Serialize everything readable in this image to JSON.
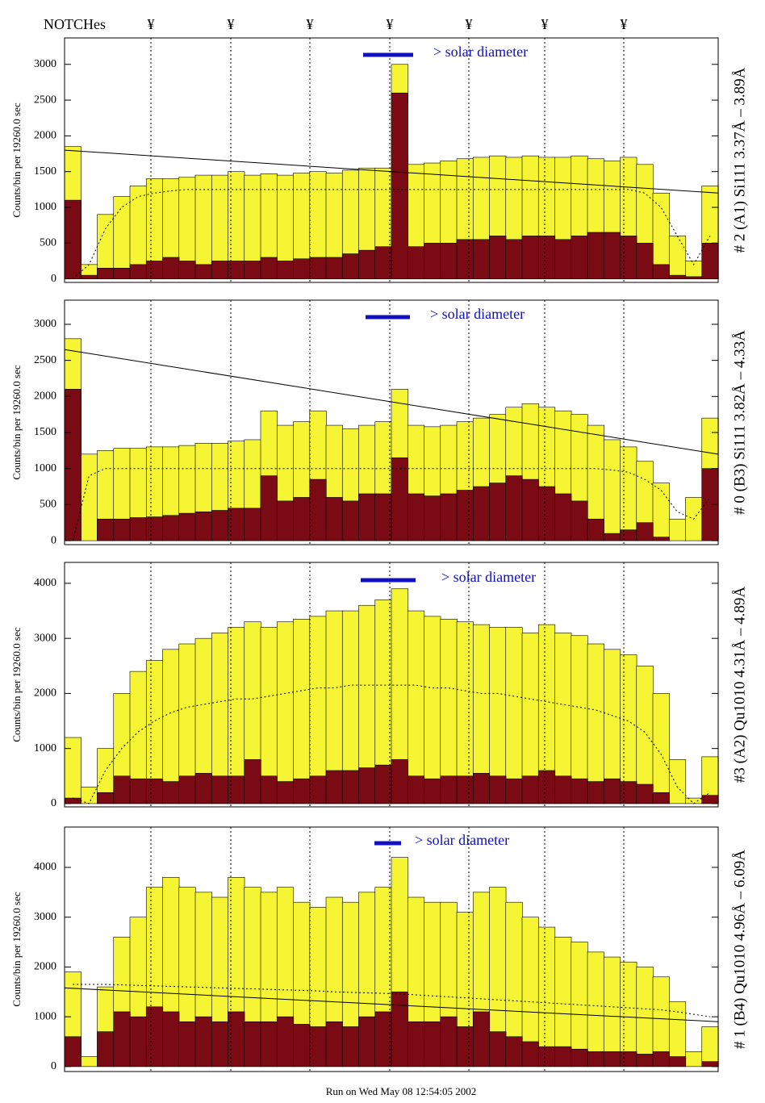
{
  "notches": {
    "label": "NOTCHes",
    "markers": [
      "¥",
      "¥",
      "¥",
      "¥",
      "¥",
      "¥",
      "¥"
    ]
  },
  "footer": "Run on Wed May 08 12:54:05 2002",
  "chart_data": [
    {
      "type": "bar",
      "y_label": "Counts/bin per  19260.0 sec",
      "side_label": "# 2 (A1) Si111  3.37Å – 3.89Å",
      "annotation": "> solar diameter",
      "ylim": [
        -50,
        3370
      ],
      "yticks": [
        0,
        500,
        1000,
        1500,
        2000,
        2500,
        3000
      ],
      "series": [
        {
          "name": "total",
          "color": "#f5f534",
          "values": [
            1850,
            200,
            900,
            1150,
            1300,
            1400,
            1400,
            1420,
            1450,
            1450,
            1500,
            1450,
            1470,
            1450,
            1480,
            1500,
            1480,
            1520,
            1550,
            1550,
            3000,
            1600,
            1620,
            1650,
            1680,
            1700,
            1720,
            1700,
            1720,
            1700,
            1700,
            1720,
            1680,
            1650,
            1700,
            1600,
            1200,
            600,
            250,
            1300
          ]
        },
        {
          "name": "lines",
          "color": "#7a0a14",
          "values": [
            1100,
            50,
            150,
            150,
            200,
            250,
            300,
            250,
            200,
            250,
            250,
            250,
            300,
            250,
            280,
            300,
            300,
            350,
            400,
            450,
            2600,
            450,
            500,
            500,
            550,
            550,
            600,
            550,
            600,
            600,
            550,
            600,
            650,
            650,
            600,
            500,
            200,
            50,
            30,
            500
          ]
        }
      ],
      "smooth": [
        0,
        200,
        700,
        1000,
        1150,
        1200,
        1230,
        1250,
        1250,
        1250,
        1250,
        1250,
        1250,
        1250,
        1250,
        1250,
        1250,
        1250,
        1250,
        1250,
        1250,
        1250,
        1250,
        1250,
        1250,
        1250,
        1250,
        1250,
        1250,
        1250,
        1250,
        1250,
        1250,
        1250,
        1250,
        1200,
        1000,
        600,
        200,
        600
      ],
      "trend": [
        1800,
        1200
      ]
    },
    {
      "type": "bar",
      "y_label": "Counts/bin per  19260.0 sec",
      "side_label": "# 0 (B3) Si111  3.82Å – 4.33Å",
      "annotation": "> solar diameter",
      "ylim": [
        -55,
        3335
      ],
      "yticks": [
        0,
        500,
        1000,
        1500,
        2000,
        2500,
        3000
      ],
      "series": [
        {
          "name": "total",
          "color": "#f5f534",
          "values": [
            2800,
            1200,
            1250,
            1280,
            1280,
            1300,
            1300,
            1320,
            1350,
            1350,
            1380,
            1400,
            1800,
            1600,
            1650,
            1800,
            1600,
            1550,
            1600,
            1650,
            2100,
            1600,
            1580,
            1600,
            1650,
            1700,
            1750,
            1850,
            1900,
            1850,
            1800,
            1750,
            1600,
            1400,
            1300,
            1100,
            800,
            300,
            600,
            1700
          ]
        },
        {
          "name": "lines",
          "color": "#7a0a14",
          "values": [
            2100,
            0,
            300,
            300,
            320,
            330,
            350,
            380,
            400,
            420,
            450,
            450,
            900,
            550,
            600,
            850,
            600,
            550,
            650,
            650,
            1150,
            650,
            620,
            650,
            700,
            750,
            800,
            900,
            850,
            750,
            650,
            550,
            300,
            100,
            150,
            250,
            50,
            0,
            0,
            1000
          ]
        }
      ],
      "smooth": [
        0,
        900,
        1000,
        1000,
        1000,
        1000,
        1000,
        1000,
        1000,
        1000,
        1000,
        1000,
        1000,
        1000,
        1000,
        1000,
        1000,
        1000,
        1000,
        1000,
        1000,
        1000,
        1000,
        1000,
        1000,
        1000,
        1000,
        1000,
        1000,
        1000,
        1000,
        1000,
        1000,
        980,
        950,
        850,
        700,
        400,
        300,
        600
      ],
      "trend": [
        2650,
        1200
      ]
    },
    {
      "type": "bar",
      "y_label": "Counts/bin per  19260.0 sec",
      "side_label": "#3 (A2) Qu1010  4.31Å – 4.89Å",
      "annotation": "> solar diameter",
      "ylim": [
        -60,
        4380
      ],
      "yticks": [
        0,
        1000,
        2000,
        3000,
        4000
      ],
      "series": [
        {
          "name": "total",
          "color": "#f5f534",
          "values": [
            1200,
            300,
            1000,
            2000,
            2400,
            2600,
            2800,
            2900,
            3000,
            3100,
            3200,
            3300,
            3200,
            3300,
            3350,
            3400,
            3500,
            3500,
            3600,
            3700,
            3900,
            3500,
            3400,
            3350,
            3300,
            3250,
            3200,
            3200,
            3100,
            3250,
            3100,
            3050,
            2900,
            2800,
            2700,
            2500,
            2000,
            800,
            100,
            850
          ]
        },
        {
          "name": "lines",
          "color": "#7a0a14",
          "values": [
            100,
            0,
            200,
            500,
            450,
            450,
            400,
            500,
            550,
            500,
            500,
            800,
            500,
            400,
            450,
            500,
            600,
            600,
            650,
            700,
            800,
            500,
            450,
            500,
            500,
            550,
            500,
            450,
            500,
            600,
            500,
            450,
            400,
            450,
            400,
            350,
            200,
            0,
            0,
            150
          ]
        }
      ],
      "smooth": [
        100,
        0,
        600,
        1000,
        1300,
        1500,
        1650,
        1750,
        1800,
        1850,
        1900,
        1900,
        1950,
        2000,
        2050,
        2100,
        2100,
        2150,
        2150,
        2150,
        2150,
        2150,
        2100,
        2100,
        2050,
        2000,
        2000,
        1950,
        1900,
        1850,
        1800,
        1750,
        1700,
        1600,
        1500,
        1300,
        900,
        300,
        0,
        200
      ]
    },
    {
      "type": "bar",
      "y_label": "Counts/bin per  19260.0 sec",
      "side_label": "# 1 (B4) Qu1010 4.96Å – 6.09Å",
      "annotation": "> solar diameter",
      "ylim": [
        -100,
        4810
      ],
      "yticks": [
        0,
        1000,
        2000,
        3000,
        4000
      ],
      "series": [
        {
          "name": "total",
          "color": "#f5f534",
          "values": [
            1900,
            200,
            1600,
            2600,
            3000,
            3600,
            3800,
            3600,
            3500,
            3400,
            3800,
            3600,
            3500,
            3600,
            3300,
            3200,
            3400,
            3300,
            3500,
            3600,
            4200,
            3400,
            3300,
            3300,
            3100,
            3500,
            3600,
            3300,
            3000,
            2800,
            2600,
            2500,
            2300,
            2200,
            2100,
            2000,
            1800,
            1300,
            300,
            800
          ]
        },
        {
          "name": "lines",
          "color": "#7a0a14",
          "values": [
            600,
            0,
            700,
            1100,
            1000,
            1200,
            1100,
            900,
            1000,
            900,
            1100,
            900,
            900,
            1000,
            850,
            800,
            900,
            800,
            1000,
            1100,
            1500,
            900,
            900,
            1000,
            800,
            1100,
            700,
            600,
            500,
            400,
            400,
            350,
            300,
            300,
            300,
            250,
            300,
            200,
            0,
            100
          ]
        }
      ],
      "smooth": [
        1650,
        1650,
        1650,
        1640,
        1630,
        1620,
        1610,
        1600,
        1590,
        1580,
        1570,
        1560,
        1550,
        1540,
        1530,
        1520,
        1500,
        1490,
        1480,
        1470,
        1460,
        1440,
        1420,
        1400,
        1380,
        1360,
        1340,
        1320,
        1300,
        1280,
        1260,
        1240,
        1220,
        1200,
        1180,
        1160,
        1140,
        1100,
        1050,
        1000
      ],
      "trend": [
        1580,
        900
      ]
    }
  ]
}
